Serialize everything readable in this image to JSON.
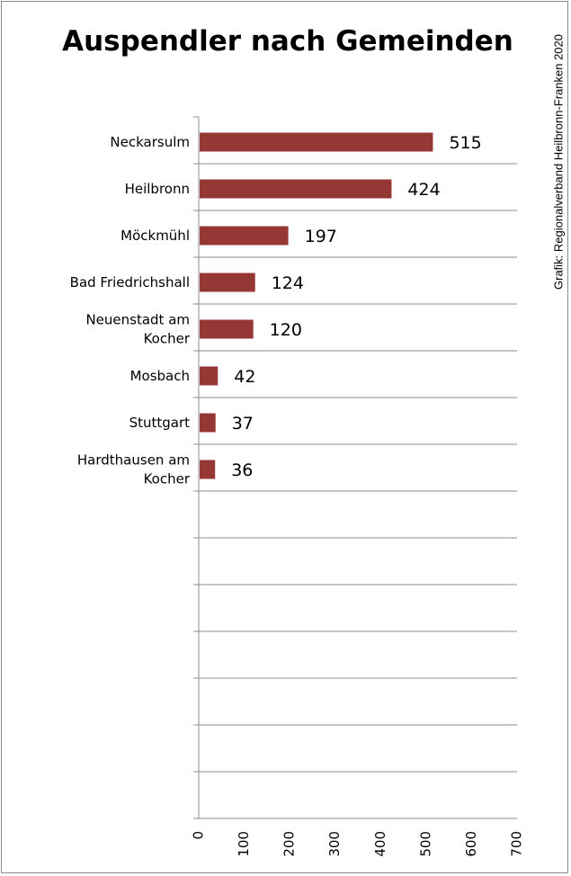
{
  "chart_data": {
    "type": "bar",
    "orientation": "horizontal",
    "title": "Auspendler nach Gemeinden",
    "source": "Grafik: Regionalverband Heilbronn-Franken 2020",
    "categories": [
      "Neckarsulm",
      "Heilbronn",
      "Möckmühl",
      "Bad Friedrichshall",
      "Neuenstadt am Kocher",
      "Mosbach",
      "Stuttgart",
      "Hardthausen am Kocher"
    ],
    "category_lines": [
      [
        "Neckarsulm"
      ],
      [
        "Heilbronn"
      ],
      [
        "Möckmühl"
      ],
      [
        "Bad Friedrichshall"
      ],
      [
        "Neuenstadt am",
        "Kocher"
      ],
      [
        "Mosbach"
      ],
      [
        "Stuttgart"
      ],
      [
        "Hardthausen am",
        "Kocher"
      ]
    ],
    "values": [
      515,
      424,
      197,
      124,
      120,
      42,
      37,
      36
    ],
    "value_labels": [
      "515",
      "424",
      "197",
      "124",
      "120",
      "42",
      "37",
      "36"
    ],
    "xlim": [
      0,
      700
    ],
    "x_ticks": [
      "0",
      "100",
      "200",
      "300",
      "400",
      "500",
      "600",
      "700"
    ],
    "gridlines": true,
    "bar_color": "#953735"
  }
}
